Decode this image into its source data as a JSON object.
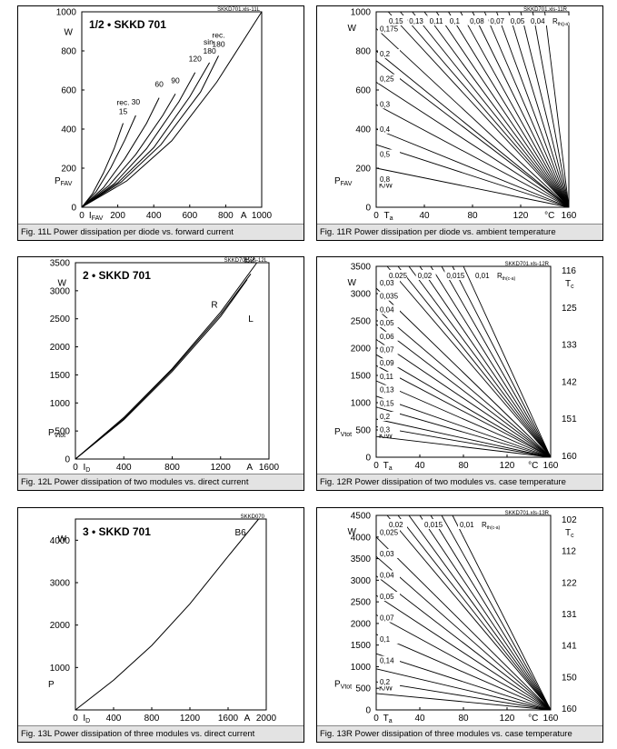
{
  "chart_data": [
    {
      "id": "11L",
      "type": "line",
      "title": "1/2 • SKKD 701",
      "file_ref": "SKKD701.xls-11L",
      "caption": "Fig. 11L Power dissipation per diode vs. forward current",
      "xlim": [
        0,
        1000
      ],
      "ylim": [
        0,
        1000
      ],
      "xticks": [
        "0",
        "200",
        "400",
        "600",
        "800",
        "1000"
      ],
      "yticks": [
        "0",
        "200",
        "400",
        "600",
        "800",
        "1000"
      ],
      "xlabel": "I",
      "xlabel_sub": "FAV",
      "xunit": "A",
      "ylabel": "P",
      "ylabel_sub": "FAV",
      "yunit": "W",
      "series": [
        {
          "label": "rec. 15",
          "points": [
            [
              0,
              0
            ],
            [
              60,
              70
            ],
            [
              120,
              175
            ],
            [
              180,
              300
            ],
            [
              230,
              430
            ]
          ]
        },
        {
          "label": "30",
          "points": [
            [
              0,
              0
            ],
            [
              80,
              80
            ],
            [
              160,
              200
            ],
            [
              240,
              345
            ],
            [
              300,
              470
            ]
          ]
        },
        {
          "label": "60",
          "points": [
            [
              0,
              0
            ],
            [
              120,
              100
            ],
            [
              240,
              250
            ],
            [
              360,
              430
            ],
            [
              430,
              560
            ]
          ]
        },
        {
          "label": "90",
          "points": [
            [
              0,
              0
            ],
            [
              150,
              110
            ],
            [
              300,
              270
            ],
            [
              450,
              470
            ],
            [
              520,
              580
            ]
          ]
        },
        {
          "label": "120",
          "points": [
            [
              0,
              0
            ],
            [
              180,
              120
            ],
            [
              360,
              300
            ],
            [
              540,
              540
            ],
            [
              630,
              690
            ]
          ]
        },
        {
          "label": "sin. 180",
          "points": [
            [
              0,
              0
            ],
            [
              200,
              125
            ],
            [
              400,
              305
            ],
            [
              600,
              565
            ],
            [
              710,
              740
            ]
          ]
        },
        {
          "label": "rec. 180",
          "points": [
            [
              0,
              0
            ],
            [
              220,
              130
            ],
            [
              440,
              320
            ],
            [
              660,
              590
            ],
            [
              760,
              775
            ]
          ]
        },
        {
          "label": "cont.",
          "points": [
            [
              0,
              0
            ],
            [
              250,
              135
            ],
            [
              500,
              340
            ],
            [
              750,
              640
            ],
            [
              1000,
              1000
            ]
          ]
        }
      ]
    },
    {
      "id": "11R",
      "type": "line",
      "file_ref": "SKKD701.xls-11R",
      "caption": "Fig. 11R Power dissipation per diode vs. ambient temperature",
      "xlim": [
        0,
        160
      ],
      "ylim": [
        0,
        1000
      ],
      "xticks": [
        "0",
        "40",
        "80",
        "120",
        "160"
      ],
      "yticks": [
        "0",
        "200",
        "400",
        "600",
        "800",
        "1000"
      ],
      "xlabel": "T",
      "xlabel_sub": "a",
      "xunit": "°C",
      "ylabel": "P",
      "ylabel_sub": "FAV",
      "yunit": "W",
      "y_kw_label": "K/W",
      "param_label": "R",
      "param_sub": "th(j-a)",
      "top_labels": [
        "0,15",
        "0,13",
        "0,11",
        "0,1",
        "0,08",
        "0,07",
        "0,05",
        "0,04"
      ],
      "left_labels": [
        "0,175",
        "0,2",
        "0,25",
        "0,3",
        "0,4",
        "0,5",
        "0,8"
      ],
      "lines": [
        {
          "x": 10,
          "y": 1000
        },
        {
          "x": 20,
          "y": 1000
        },
        {
          "x": 30,
          "y": 1000
        },
        {
          "x": 40,
          "y": 1000
        },
        {
          "x": 50,
          "y": 1000
        },
        {
          "x": 60,
          "y": 1000
        },
        {
          "x": 70,
          "y": 1000
        },
        {
          "x": 80,
          "y": 1000
        },
        {
          "x": 90,
          "y": 1000
        },
        {
          "x": 100,
          "y": 1000
        },
        {
          "x": 110,
          "y": 1000
        },
        {
          "x": 120,
          "y": 1000
        },
        {
          "x": 130,
          "y": 1000
        },
        {
          "x": 140,
          "y": 1000
        },
        {
          "x": 0,
          "y": 915
        },
        {
          "x": 0,
          "y": 800
        },
        {
          "x": 0,
          "y": 750
        },
        {
          "x": 0,
          "y": 640
        },
        {
          "x": 0,
          "y": 525
        },
        {
          "x": 0,
          "y": 400
        },
        {
          "x": 0,
          "y": 320
        },
        {
          "x": 0,
          "y": 200
        }
      ]
    },
    {
      "id": "12L",
      "type": "line",
      "title": "2 • SKKD 701",
      "file_ref": "SKKD701.xls-12L",
      "caption": "Fig. 12L Power dissipation of two modules vs. direct current",
      "xlim": [
        0,
        1600
      ],
      "ylim": [
        0,
        3500
      ],
      "xticks": [
        "0",
        "400",
        "800",
        "1200",
        "1600"
      ],
      "yticks": [
        "0",
        "500",
        "1000",
        "1500",
        "2000",
        "2500",
        "3000",
        "3500"
      ],
      "xlabel": "I",
      "xlabel_sub": "D",
      "xunit": "A",
      "ylabel": "P",
      "ylabel_sub": "Vtot",
      "yunit": "W",
      "series": [
        {
          "label": "B2",
          "points": [
            [
              0,
              0
            ],
            [
              400,
              740
            ],
            [
              800,
              1610
            ],
            [
              1200,
              2620
            ],
            [
              1500,
              3500
            ]
          ]
        },
        {
          "label": "R",
          "points": [
            [
              0,
              0
            ],
            [
              400,
              720
            ],
            [
              800,
              1590
            ],
            [
              1200,
              2580
            ],
            [
              1450,
              3300
            ]
          ]
        },
        {
          "label": "L",
          "points": [
            [
              0,
              0
            ],
            [
              400,
              700
            ],
            [
              800,
              1560
            ],
            [
              1200,
              2540
            ],
            [
              1420,
              3200
            ]
          ]
        }
      ]
    },
    {
      "id": "12R",
      "type": "line",
      "file_ref": "SKKD701.xls-12R",
      "caption": "Fig. 12R Power dissipation of two modules vs. case temperature",
      "xlim": [
        0,
        160
      ],
      "ylim": [
        0,
        3500
      ],
      "xticks": [
        "0",
        "40",
        "80",
        "120",
        "160"
      ],
      "yticks": [
        "0",
        "500",
        "1000",
        "1500",
        "2000",
        "2500",
        "3000",
        "3500"
      ],
      "xlabel": "T",
      "xlabel_sub": "a",
      "xunit": "°C",
      "ylabel": "P",
      "ylabel_sub": "Vtot",
      "yunit": "W",
      "y_kw_label": "K/W",
      "right_axis_label": "T",
      "right_axis_sub": "c",
      "right_ticks": [
        "116",
        "125",
        "133",
        "142",
        "151",
        "160"
      ],
      "param_label": "R",
      "param_sub": "th(c-a)",
      "top_labels": [
        "0,025",
        "0,02",
        "0,015",
        "0,01"
      ],
      "left_labels": [
        "0,03",
        "0,035",
        "0,04",
        "0,05",
        "0,06",
        "0,07",
        "0,09",
        "0,11",
        "0,13",
        "0,15",
        "0,2",
        "0,3"
      ],
      "lines": [
        {
          "x": 10,
          "y": 3500
        },
        {
          "x": 20,
          "y": 3500
        },
        {
          "x": 30,
          "y": 3500
        },
        {
          "x": 40,
          "y": 3500
        },
        {
          "x": 50,
          "y": 3500
        },
        {
          "x": 60,
          "y": 3500
        },
        {
          "x": 70,
          "y": 3500
        },
        {
          "x": 80,
          "y": 3500
        },
        {
          "x": 0,
          "y": 3100
        },
        {
          "x": 0,
          "y": 2720
        },
        {
          "x": 0,
          "y": 2440
        },
        {
          "x": 0,
          "y": 2160
        },
        {
          "x": 0,
          "y": 1880
        },
        {
          "x": 0,
          "y": 1680
        },
        {
          "x": 0,
          "y": 1400
        },
        {
          "x": 0,
          "y": 1120
        },
        {
          "x": 0,
          "y": 920
        },
        {
          "x": 0,
          "y": 700
        },
        {
          "x": 0,
          "y": 560
        },
        {
          "x": 0,
          "y": 380
        }
      ]
    },
    {
      "id": "13L",
      "type": "line",
      "title": "3 • SKKD 701",
      "file_ref": "SKKD070",
      "caption": "Fig. 13L Power dissipation of three modules vs. direct current",
      "xlim": [
        0,
        2000
      ],
      "ylim": [
        0,
        4500
      ],
      "xticks": [
        "0",
        "400",
        "800",
        "1200",
        "1600",
        "2000"
      ],
      "yticks": [
        "1000",
        "2000",
        "3000",
        "4000"
      ],
      "xlabel": "I",
      "xlabel_sub": "D",
      "xunit": "A",
      "ylabel": "P",
      "yunit": "W",
      "series": [
        {
          "label": "B6",
          "points": [
            [
              0,
              0
            ],
            [
              400,
              700
            ],
            [
              800,
              1520
            ],
            [
              1200,
              2500
            ],
            [
              1600,
              3620
            ],
            [
              1920,
              4500
            ]
          ]
        }
      ]
    },
    {
      "id": "13R",
      "type": "line",
      "file_ref": "SKKD701.xls-13R",
      "caption": "Fig. 13R Power dissipation of three modules vs. case temperature",
      "xlim": [
        0,
        160
      ],
      "ylim": [
        0,
        4500
      ],
      "xticks": [
        "0",
        "40",
        "80",
        "120",
        "160"
      ],
      "yticks": [
        "0",
        "500",
        "1000",
        "1500",
        "2000",
        "2500",
        "3000",
        "3500",
        "4000",
        "4500"
      ],
      "xlabel": "T",
      "xlabel_sub": "a",
      "xunit": "°C",
      "ylabel": "P",
      "ylabel_sub": "Vtot",
      "yunit": "W",
      "y_kw_label": "K/W",
      "right_axis_label": "T",
      "right_axis_sub": "c",
      "right_ticks": [
        "102",
        "112",
        "122",
        "131",
        "141",
        "150",
        "160"
      ],
      "param_label": "R",
      "param_sub": "th(c-a)",
      "top_labels": [
        "0,02",
        "0,015",
        "0,01"
      ],
      "left_labels": [
        "0,025",
        "0,03",
        "0,04",
        "0,05",
        "0,07",
        "0,1",
        "0,14",
        "0,2"
      ],
      "lines": [
        {
          "x": 10,
          "y": 4500
        },
        {
          "x": 20,
          "y": 4500
        },
        {
          "x": 30,
          "y": 4500
        },
        {
          "x": 40,
          "y": 4500
        },
        {
          "x": 50,
          "y": 4500
        },
        {
          "x": 60,
          "y": 4500
        },
        {
          "x": 70,
          "y": 4500
        },
        {
          "x": 0,
          "y": 4000
        },
        {
          "x": 0,
          "y": 3550
        },
        {
          "x": 0,
          "y": 3100
        },
        {
          "x": 0,
          "y": 2650
        },
        {
          "x": 0,
          "y": 2200
        },
        {
          "x": 0,
          "y": 1750
        },
        {
          "x": 0,
          "y": 1300
        },
        {
          "x": 0,
          "y": 950
        },
        {
          "x": 0,
          "y": 650
        },
        {
          "x": 0,
          "y": 380
        }
      ]
    }
  ]
}
